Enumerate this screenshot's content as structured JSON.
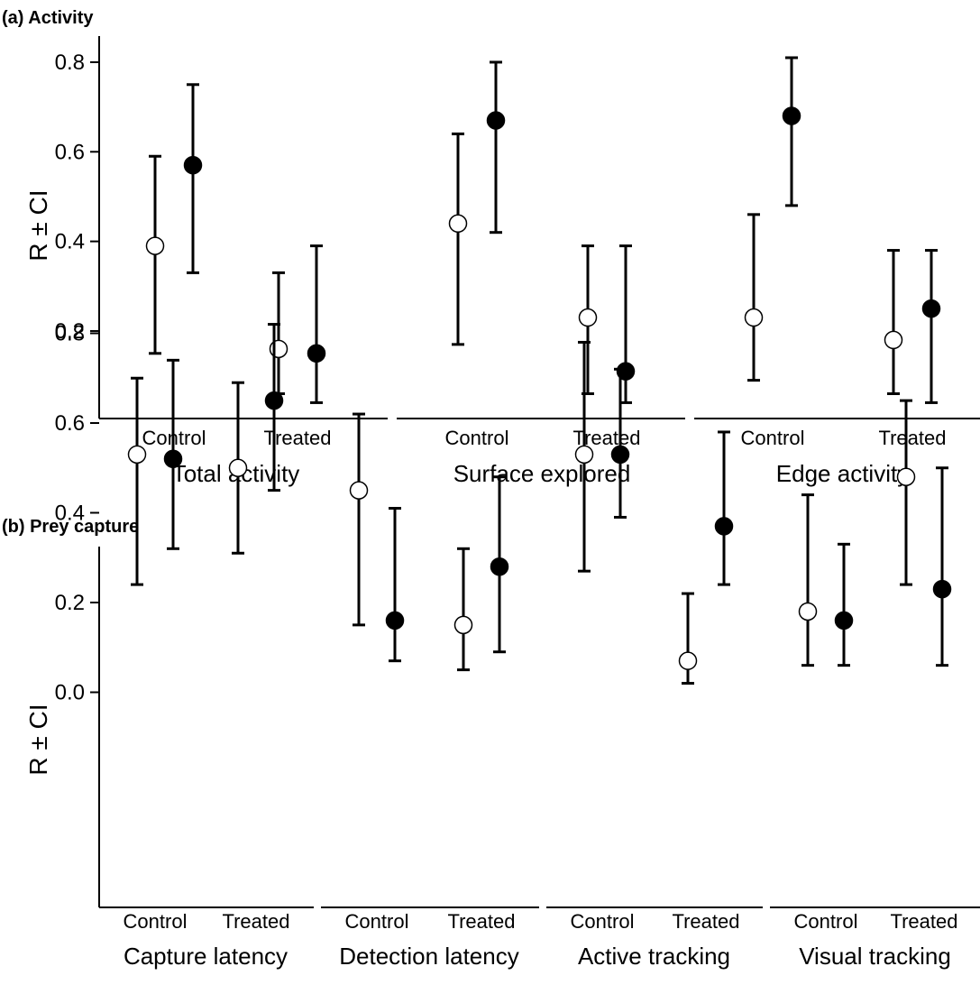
{
  "chart_data": [
    {
      "type": "scatter",
      "title": "(a) Activity",
      "ylabel": "R ± CI",
      "ylim": [
        0,
        0.85
      ],
      "yticks": [
        "0.2",
        "0.4",
        "0.6",
        "0.8"
      ],
      "groups": [
        {
          "name": "Total activity",
          "conditions": [
            {
              "label": "Control",
              "points": [
                {
                  "fill": "open",
                  "mean": 0.39,
                  "lower": 0.15,
                  "upper": 0.59
                },
                {
                  "fill": "filled",
                  "mean": 0.57,
                  "lower": 0.33,
                  "upper": 0.75
                }
              ]
            },
            {
              "label": "Treated",
              "points": [
                {
                  "fill": "open",
                  "mean": 0.16,
                  "lower": 0.06,
                  "upper": 0.33
                },
                {
                  "fill": "filled",
                  "mean": 0.15,
                  "lower": 0.04,
                  "upper": 0.39
                }
              ]
            }
          ]
        },
        {
          "name": "Surface explored",
          "conditions": [
            {
              "label": "Control",
              "points": [
                {
                  "fill": "open",
                  "mean": 0.44,
                  "lower": 0.17,
                  "upper": 0.64
                },
                {
                  "fill": "filled",
                  "mean": 0.67,
                  "lower": 0.42,
                  "upper": 0.8
                }
              ]
            },
            {
              "label": "Treated",
              "points": [
                {
                  "fill": "open",
                  "mean": 0.23,
                  "lower": 0.06,
                  "upper": 0.39
                },
                {
                  "fill": "filled",
                  "mean": 0.11,
                  "lower": 0.04,
                  "upper": 0.39
                }
              ]
            }
          ]
        },
        {
          "name": "Edge activity",
          "conditions": [
            {
              "label": "Control",
              "points": [
                {
                  "fill": "open",
                  "mean": 0.23,
                  "lower": 0.09,
                  "upper": 0.46
                },
                {
                  "fill": "filled",
                  "mean": 0.68,
                  "lower": 0.48,
                  "upper": 0.81
                }
              ]
            },
            {
              "label": "Treated",
              "points": [
                {
                  "fill": "open",
                  "mean": 0.18,
                  "lower": 0.06,
                  "upper": 0.38
                },
                {
                  "fill": "filled",
                  "mean": 0.25,
                  "lower": 0.04,
                  "upper": 0.38
                }
              ]
            }
          ]
        }
      ]
    },
    {
      "type": "scatter",
      "title": "(b) Prey capture",
      "ylabel": "R ± CI",
      "ylim": [
        0,
        0.85
      ],
      "yticks": [
        "0.0",
        "0.2",
        "0.4",
        "0.6",
        "0.8"
      ],
      "groups": [
        {
          "name": "Capture latency",
          "conditions": [
            {
              "label": "Control",
              "points": [
                {
                  "fill": "open",
                  "mean": 0.53,
                  "lower": 0.24,
                  "upper": 0.7
                },
                {
                  "fill": "filled",
                  "mean": 0.52,
                  "lower": 0.32,
                  "upper": 0.74
                }
              ]
            },
            {
              "label": "Treated",
              "points": [
                {
                  "fill": "open",
                  "mean": 0.5,
                  "lower": 0.31,
                  "upper": 0.69
                },
                {
                  "fill": "filled",
                  "mean": 0.65,
                  "lower": 0.45,
                  "upper": 0.82
                }
              ]
            }
          ]
        },
        {
          "name": "Detection latency",
          "conditions": [
            {
              "label": "Control",
              "points": [
                {
                  "fill": "open",
                  "mean": 0.45,
                  "lower": 0.15,
                  "upper": 0.62
                },
                {
                  "fill": "filled",
                  "mean": 0.16,
                  "lower": 0.07,
                  "upper": 0.41
                }
              ]
            },
            {
              "label": "Treated",
              "points": [
                {
                  "fill": "open",
                  "mean": 0.15,
                  "lower": 0.05,
                  "upper": 0.32
                },
                {
                  "fill": "filled",
                  "mean": 0.28,
                  "lower": 0.09,
                  "upper": 0.48
                }
              ]
            }
          ]
        },
        {
          "name": "Active tracking",
          "conditions": [
            {
              "label": "Control",
              "points": [
                {
                  "fill": "open",
                  "mean": 0.53,
                  "lower": 0.27,
                  "upper": 0.78
                },
                {
                  "fill": "filled",
                  "mean": 0.53,
                  "lower": 0.39,
                  "upper": 0.72
                }
              ]
            },
            {
              "label": "Treated",
              "points": [
                {
                  "fill": "open",
                  "mean": 0.07,
                  "lower": 0.02,
                  "upper": 0.22
                },
                {
                  "fill": "filled",
                  "mean": 0.37,
                  "lower": 0.24,
                  "upper": 0.58
                }
              ]
            }
          ]
        },
        {
          "name": "Visual tracking",
          "conditions": [
            {
              "label": "Control",
              "points": [
                {
                  "fill": "open",
                  "mean": 0.18,
                  "lower": 0.06,
                  "upper": 0.44
                },
                {
                  "fill": "filled",
                  "mean": 0.16,
                  "lower": 0.06,
                  "upper": 0.33
                }
              ]
            },
            {
              "label": "Treated",
              "points": [
                {
                  "fill": "open",
                  "mean": 0.48,
                  "lower": 0.24,
                  "upper": 0.65
                },
                {
                  "fill": "filled",
                  "mean": 0.23,
                  "lower": 0.06,
                  "upper": 0.5
                }
              ]
            }
          ]
        }
      ]
    }
  ]
}
